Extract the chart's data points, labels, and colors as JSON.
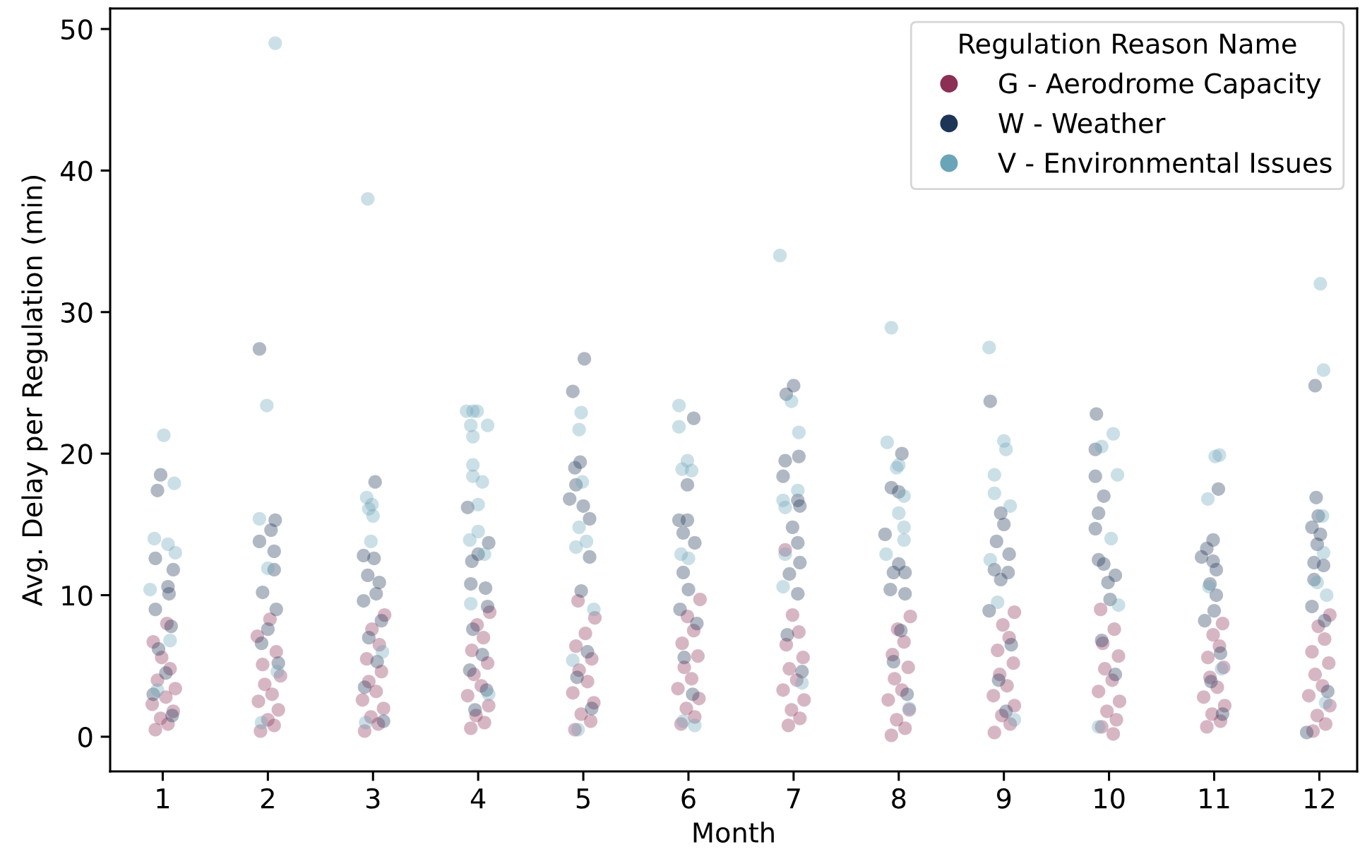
{
  "chart_data": {
    "type": "scatter",
    "xlabel": "Month",
    "ylabel": "Avg. Delay per Regulation (min)",
    "legend_title": "Regulation Reason Name",
    "legend": "top right",
    "marker": "circle",
    "xlim": [
      0.5,
      12.36
    ],
    "xticks": [
      1,
      2,
      3,
      4,
      5,
      6,
      7,
      8,
      9,
      10,
      11,
      12
    ],
    "ylim": [
      -2.45,
      51.45
    ],
    "yticks": [
      0,
      10,
      20,
      30,
      40,
      50
    ],
    "series": [
      {
        "name": "G - Aerodrome Capacity",
        "color": "#8c2f55",
        "x": [
          0.93,
          1.05,
          0.98,
          1.1,
          0.9,
          1.03,
          1.12,
          0.95,
          1.07,
          0.99,
          0.91,
          1.04,
          1.93,
          2.06,
          2.0,
          2.1,
          1.91,
          2.04,
          1.97,
          2.12,
          1.95,
          2.08,
          1.9,
          2.02,
          2.92,
          3.05,
          2.98,
          3.1,
          2.9,
          3.03,
          2.96,
          3.08,
          2.94,
          3.06,
          2.99,
          3.11,
          3.93,
          4.06,
          3.98,
          4.1,
          3.9,
          4.03,
          3.96,
          4.09,
          3.94,
          4.05,
          3.99,
          4.11,
          4.92,
          5.07,
          4.98,
          5.1,
          4.9,
          5.04,
          4.96,
          5.08,
          4.93,
          5.02,
          5.11,
          4.95,
          5.93,
          6.06,
          5.98,
          6.1,
          5.9,
          6.03,
          5.96,
          6.09,
          5.94,
          6.05,
          5.99,
          6.11,
          6.95,
          7.06,
          6.98,
          7.1,
          6.9,
          7.03,
          6.96,
          7.09,
          6.93,
          7.05,
          6.99,
          6.92,
          7.93,
          8.06,
          7.98,
          8.1,
          7.9,
          8.03,
          7.96,
          8.09,
          7.94,
          8.05,
          7.99,
          8.11,
          8.91,
          9.06,
          8.98,
          9.1,
          8.9,
          9.03,
          8.96,
          9.09,
          8.94,
          9.05,
          8.99,
          9.1,
          10.04,
          9.93,
          10.07,
          9.98,
          10.1,
          9.9,
          10.03,
          9.96,
          10.09,
          9.94,
          10.05,
          9.92,
          10.93,
          11.06,
          10.98,
          11.1,
          10.9,
          11.03,
          10.96,
          11.09,
          10.94,
          11.05,
          10.99,
          11.08,
          11.94,
          12.06,
          11.98,
          12.1,
          11.9,
          12.03,
          11.96,
          12.09,
          11.93,
          12.05,
          11.99,
          12.1
        ],
        "values": [
          0.5,
          0.9,
          1.3,
          1.8,
          2.3,
          2.8,
          3.4,
          4.0,
          4.8,
          5.6,
          6.7,
          8.0,
          0.4,
          0.8,
          1.2,
          1.9,
          2.5,
          3.0,
          3.7,
          4.3,
          5.1,
          6.0,
          7.1,
          8.3,
          0.4,
          0.9,
          1.4,
          2.0,
          2.6,
          3.2,
          3.9,
          4.6,
          5.5,
          6.5,
          7.6,
          8.6,
          0.6,
          1.0,
          1.5,
          2.2,
          2.9,
          3.6,
          4.4,
          5.2,
          6.1,
          7.0,
          7.9,
          8.8,
          0.5,
          1.1,
          1.6,
          2.4,
          3.1,
          3.9,
          4.7,
          5.5,
          6.4,
          7.3,
          8.4,
          9.6,
          0.9,
          1.4,
          2.0,
          2.7,
          3.4,
          4.1,
          4.9,
          5.7,
          6.6,
          7.5,
          8.5,
          9.7,
          0.8,
          1.3,
          1.9,
          2.6,
          3.3,
          4.0,
          4.8,
          5.6,
          6.5,
          7.4,
          8.6,
          13.2,
          0.1,
          0.6,
          1.2,
          1.9,
          2.6,
          3.3,
          4.1,
          4.9,
          5.8,
          6.7,
          7.6,
          8.5,
          0.3,
          0.9,
          1.5,
          2.2,
          2.9,
          3.6,
          4.4,
          5.2,
          6.1,
          7.0,
          7.9,
          8.8,
          0.2,
          0.7,
          1.2,
          1.8,
          2.5,
          3.2,
          4.0,
          4.8,
          5.7,
          6.6,
          7.6,
          9.0,
          0.7,
          1.1,
          1.6,
          2.2,
          2.8,
          3.5,
          4.2,
          4.9,
          5.6,
          6.4,
          7.2,
          8.0,
          0.4,
          0.9,
          1.5,
          2.2,
          2.9,
          3.6,
          4.4,
          5.2,
          6.0,
          6.9,
          7.8,
          8.6
        ]
      },
      {
        "name": "W - Weather",
        "color": "#1d3557",
        "x": [
          0.98,
          0.95,
          0.93,
          1.1,
          1.05,
          1.06,
          0.93,
          1.08,
          0.96,
          1.03,
          0.91,
          1.09,
          1.92,
          2.07,
          2.03,
          1.92,
          2.06,
          2.06,
          1.95,
          2.08,
          2.0,
          1.94,
          2.1,
          3.02,
          2.91,
          3.01,
          2.95,
          3.06,
          3.03,
          2.91,
          3.08,
          2.96,
          3.04,
          2.92,
          3.1,
          3.9,
          4.1,
          4.0,
          3.94,
          3.93,
          4.07,
          4.09,
          3.95,
          4.04,
          3.92,
          4.08,
          3.97,
          5.01,
          4.9,
          4.97,
          4.92,
          4.93,
          4.87,
          5.0,
          5.06,
          5.06,
          4.98,
          5.04,
          4.94,
          5.08,
          6.05,
          5.99,
          5.91,
          5.99,
          5.95,
          6.06,
          5.95,
          6.0,
          5.92,
          6.08,
          5.96,
          6.04,
          7.0,
          6.93,
          6.92,
          7.05,
          6.9,
          7.06,
          7.04,
          6.99,
          7.04,
          7.06,
          6.96,
          7.04,
          6.94,
          7.08,
          8.03,
          7.93,
          8.0,
          7.87,
          8.0,
          8.06,
          7.95,
          8.06,
          7.92,
          8.02,
          7.95,
          8.08,
          8.87,
          8.97,
          9.0,
          8.93,
          9.05,
          8.91,
          9.04,
          8.97,
          8.86,
          9.07,
          8.95,
          9.02,
          9.88,
          9.87,
          9.87,
          9.95,
          9.9,
          9.87,
          9.9,
          9.95,
          10.06,
          9.99,
          10.01,
          9.93,
          10.06,
          11.04,
          10.99,
          10.93,
          10.88,
          10.99,
          11.02,
          10.96,
          11.02,
          11.0,
          10.91,
          11.06,
          10.97,
          11.08,
          11.96,
          11.97,
          11.99,
          11.93,
          12.01,
          11.98,
          11.95,
          12.04,
          11.95,
          11.93,
          12.05,
          12.08,
          11.88
        ],
        "values": [
          18.5,
          17.4,
          12.6,
          11.8,
          10.6,
          10.1,
          9.0,
          7.8,
          6.2,
          4.5,
          3.0,
          1.5,
          27.4,
          15.3,
          14.6,
          13.8,
          13.1,
          11.8,
          10.2,
          9.0,
          7.6,
          6.6,
          5.2,
          18.0,
          12.8,
          12.6,
          11.4,
          10.9,
          10.1,
          9.6,
          8.2,
          7.0,
          5.3,
          3.5,
          1.1,
          16.2,
          13.7,
          12.9,
          12.4,
          10.8,
          10.5,
          9.2,
          7.6,
          5.8,
          4.7,
          3.3,
          1.9,
          26.7,
          24.4,
          19.4,
          19.0,
          17.8,
          16.8,
          16.3,
          15.4,
          12.7,
          10.3,
          6.0,
          4.2,
          2.0,
          22.5,
          17.8,
          15.3,
          15.3,
          14.4,
          13.7,
          11.6,
          10.4,
          9.0,
          8.0,
          5.6,
          3.0,
          24.8,
          24.2,
          19.5,
          19.8,
          18.4,
          16.3,
          16.7,
          14.8,
          13.7,
          12.3,
          11.5,
          10.1,
          7.2,
          4.6,
          20.0,
          17.6,
          17.3,
          14.3,
          12.2,
          11.6,
          11.6,
          10.1,
          10.4,
          7.5,
          5.3,
          3.0,
          23.7,
          15.8,
          15.0,
          13.8,
          12.9,
          11.8,
          11.6,
          11.1,
          8.9,
          6.5,
          4.0,
          1.8,
          22.8,
          20.3,
          18.4,
          17.0,
          15.8,
          14.7,
          12.5,
          12.2,
          11.4,
          10.9,
          9.7,
          6.8,
          4.4,
          17.5,
          13.9,
          13.3,
          12.7,
          12.4,
          11.8,
          10.8,
          10.0,
          8.9,
          8.2,
          5.9,
          3.9,
          1.6,
          24.8,
          16.9,
          15.6,
          14.8,
          14.3,
          13.6,
          12.3,
          12.1,
          11.1,
          9.2,
          8.2,
          3.2,
          0.3
        ]
      },
      {
        "name": "V - Environmental Issues",
        "color": "#6aa4b7",
        "x": [
          1.01,
          1.11,
          0.92,
          1.05,
          1.12,
          0.88,
          1.07,
          0.95,
          2.07,
          1.99,
          1.92,
          2.0,
          2.09,
          1.94,
          2.95,
          2.94,
          2.99,
          2.96,
          3.0,
          2.98,
          3.09,
          2.93,
          3.89,
          3.99,
          3.95,
          3.93,
          4.09,
          3.95,
          3.95,
          3.95,
          4.04,
          4.0,
          4.0,
          3.92,
          4.06,
          3.93,
          4.1,
          4.98,
          4.96,
          4.99,
          4.96,
          5.03,
          4.93,
          5.1,
          4.9,
          4.95,
          5.91,
          5.91,
          5.99,
          5.94,
          6.03,
          5.93,
          6.0,
          6.06,
          5.95,
          6.87,
          6.98,
          7.05,
          7.04,
          6.9,
          6.92,
          6.92,
          6.9,
          7.08,
          7.93,
          7.89,
          8.0,
          7.98,
          8.05,
          8.0,
          8.05,
          8.05,
          7.88,
          8.1,
          8.86,
          9.0,
          9.02,
          8.91,
          8.91,
          9.06,
          8.87,
          8.94,
          9.1,
          10.04,
          9.93,
          10.08,
          10.02,
          10.09,
          9.9,
          11.05,
          11.01,
          10.94,
          10.95,
          11.07,
          12.01,
          12.04,
          12.03,
          12.04,
          11.98,
          12.07,
          12.06
        ],
        "values": [
          21.3,
          17.9,
          14.0,
          13.6,
          13.0,
          10.4,
          6.8,
          3.3,
          49.0,
          23.4,
          15.4,
          11.9,
          4.6,
          1.0,
          38.0,
          16.9,
          16.4,
          16.1,
          15.6,
          13.8,
          6.0,
          1.0,
          23.0,
          23.0,
          23.0,
          22.0,
          22.0,
          21.2,
          19.2,
          18.4,
          18.0,
          16.4,
          14.5,
          13.9,
          12.9,
          9.4,
          3.0,
          22.9,
          21.7,
          18.0,
          14.8,
          13.8,
          13.4,
          9.0,
          5.4,
          0.5,
          23.4,
          21.9,
          19.5,
          18.9,
          18.8,
          12.9,
          12.6,
          0.8,
          1.1,
          34.0,
          23.7,
          21.5,
          17.4,
          16.7,
          16.2,
          12.9,
          10.6,
          3.8,
          28.9,
          20.8,
          19.2,
          19.0,
          17.0,
          15.8,
          14.8,
          13.9,
          12.9,
          2.0,
          27.5,
          20.9,
          20.3,
          18.5,
          17.2,
          16.3,
          12.5,
          9.5,
          1.2,
          21.4,
          20.5,
          18.5,
          14.0,
          9.3,
          0.7,
          19.9,
          19.8,
          16.8,
          10.6,
          4.8,
          32.0,
          25.9,
          15.6,
          13.0,
          10.9,
          10.0,
          2.4
        ]
      }
    ]
  }
}
